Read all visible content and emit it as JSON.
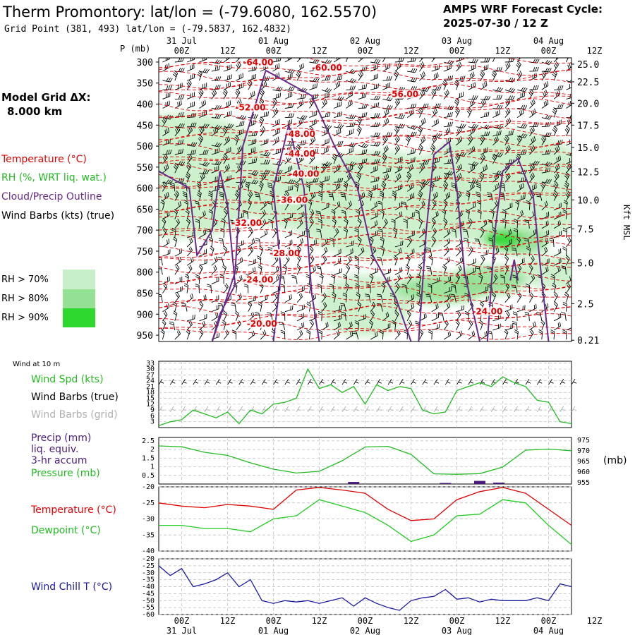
{
  "header": {
    "title": "Therm Promontory:  lat/lon = (-79.6080, 162.5570)",
    "grid_point": "Grid Point (381, 493) lat/lon = (-79.5837, 162.4832)",
    "forecast_title": "AMPS WRF Forecast Cycle:",
    "forecast_cycle": "2025-07-30 / 12  Z",
    "model_grid_label": "Model Grid ΔX:",
    "model_grid_value": "8.000 km"
  },
  "time_axis": {
    "ticks": [
      "00Z",
      "12Z",
      "00Z",
      "12Z",
      "00Z",
      "12Z",
      "00Z",
      "12Z",
      "00Z",
      "12Z"
    ],
    "dates": [
      {
        "label": "31 Jul",
        "tick_index": 0
      },
      {
        "label": "01 Aug",
        "tick_index": 2
      },
      {
        "label": "02 Aug",
        "tick_index": 4
      },
      {
        "label": "03 Aug",
        "tick_index": 6
      },
      {
        "label": "04 Aug",
        "tick_index": 8
      }
    ],
    "hour_range": [
      -6,
      102
    ]
  },
  "colors": {
    "temperature": "#e00000",
    "rh": "#22bb22",
    "cloud": "#6a2a8a",
    "wind_barbs": "#000000",
    "wind_barbs_grid": "#b0b0b0",
    "dewpoint": "#22cc22",
    "wind_chill": "#1a1aa0",
    "precip": "#4a1a7a",
    "rh70": "#c8f0c8",
    "rh80": "#94e094",
    "rh90": "#2ed82e"
  },
  "legend_main": {
    "temperature": "Temperature (°C)",
    "rh": "RH (%, WRT liq. wat.)",
    "cloud": "Cloud/Precip Outline",
    "wind": "Wind Barbs (kts) (true)",
    "rh_levels": [
      "RH > 70%",
      "RH > 80%",
      "RH > 90%"
    ]
  },
  "panels": {
    "wind": {
      "title": "Wind at 10 m",
      "legend": [
        "Wind Spd (kts)",
        "Wind Barbs (true)",
        "Wind Barbs (grid)"
      ]
    },
    "precip": {
      "legend": [
        "Precip (mm)",
        "liq. equiv.",
        "3-hr accum",
        "Pressure (mb)"
      ],
      "right_unit": "(mb)"
    },
    "temp": {
      "legend": [
        "Temperature (°C)",
        "Dewpoint (°C)"
      ]
    },
    "chill": {
      "legend": [
        "Wind Chill T (°C)"
      ]
    }
  },
  "chart_data": [
    {
      "type": "heatmap",
      "name": "cross-section",
      "ylabel": "P (mb)",
      "y_ticks": [
        300,
        350,
        400,
        450,
        500,
        550,
        600,
        650,
        700,
        750,
        800,
        850,
        900,
        950
      ],
      "ylim": [
        290,
        965
      ],
      "right_axis_label": "Kft MSL",
      "right_ticks": [
        {
          "label": "25.0",
          "p": 305
        },
        {
          "label": "22.5",
          "p": 347
        },
        {
          "label": "20.0",
          "p": 398
        },
        {
          "label": "17.5",
          "p": 450
        },
        {
          "label": "15.0",
          "p": 503
        },
        {
          "label": "12.5",
          "p": 561
        },
        {
          "label": "10.0",
          "p": 628
        },
        {
          "label": "7.5",
          "p": 697
        },
        {
          "label": "5.0",
          "p": 778
        },
        {
          "label": "2.5",
          "p": 875
        },
        {
          "label": "0.21",
          "p": 962
        }
      ],
      "temperature_labels": [
        {
          "text": "-64.00",
          "h": 20,
          "p": 308
        },
        {
          "text": "-60.00",
          "h": 38,
          "p": 320
        },
        {
          "text": "-56.00",
          "h": 58,
          "p": 383
        },
        {
          "text": "-52.00",
          "h": 18,
          "p": 415
        },
        {
          "text": "-48.00",
          "h": 31,
          "p": 478
        },
        {
          "text": "-44.00",
          "h": 31,
          "p": 525
        },
        {
          "text": "-40.00",
          "h": 32,
          "p": 573
        },
        {
          "text": "-36.00",
          "h": 29,
          "p": 635
        },
        {
          "text": "-32.00",
          "h": 17,
          "p": 690
        },
        {
          "text": "-28.00",
          "h": 27,
          "p": 762
        },
        {
          "text": "-24.00",
          "h": 20,
          "p": 825
        },
        {
          "text": "-20.00",
          "h": 21,
          "p": 930
        },
        {
          "text": "-24.00",
          "h": 80,
          "p": 900
        }
      ]
    },
    {
      "type": "line",
      "name": "wind-speed",
      "y_ticks": [
        3,
        6,
        9,
        12,
        15,
        18,
        21,
        24,
        27,
        30,
        33
      ],
      "ylim": [
        0,
        34
      ],
      "x": [
        -6,
        -3,
        0,
        3,
        6,
        9,
        12,
        15,
        18,
        21,
        24,
        27,
        30,
        33,
        36,
        39,
        42,
        45,
        48,
        51,
        54,
        57,
        60,
        63,
        66,
        69,
        72,
        75,
        78,
        81,
        84,
        87,
        90,
        93,
        96,
        99,
        102
      ],
      "series": [
        {
          "values": [
            1,
            3,
            4,
            9,
            7,
            5,
            8,
            2,
            9,
            7,
            12,
            13,
            15,
            30,
            20,
            22,
            18,
            21,
            12,
            22,
            19,
            21,
            20,
            9,
            7,
            8,
            19,
            21,
            23,
            21,
            26,
            23,
            21,
            14,
            13,
            3,
            2
          ]
        }
      ]
    },
    {
      "type": "line",
      "name": "precip-pressure",
      "y_ticks_left": [
        0.5,
        1.0,
        1.5,
        2.0,
        2.5
      ],
      "ylim_left": [
        0,
        2.7
      ],
      "y_ticks_right": [
        955,
        960,
        965,
        970,
        975
      ],
      "ylim_right": [
        954,
        976
      ],
      "pressure_x": [
        -6,
        0,
        6,
        12,
        18,
        24,
        30,
        36,
        42,
        48,
        54,
        60,
        66,
        72,
        78,
        84,
        90,
        96,
        102
      ],
      "pressure": [
        972,
        971.6,
        969,
        967.5,
        964,
        961,
        959.2,
        960,
        965,
        971.5,
        971.8,
        968,
        958.8,
        958.6,
        958.9,
        962,
        970,
        970.5,
        969.7
      ],
      "precip_bars": [
        {
          "h": 45,
          "v": 0.12
        },
        {
          "h": 69,
          "v": 0.06
        },
        {
          "h": 78,
          "v": 0.18
        },
        {
          "h": 83,
          "v": 0.08
        }
      ]
    },
    {
      "type": "line",
      "name": "temperature-dewpoint",
      "y_ticks": [
        -40,
        -35,
        -30,
        -25,
        -20
      ],
      "ylim": [
        -40,
        -20
      ],
      "x": [
        -6,
        0,
        6,
        12,
        18,
        24,
        30,
        36,
        42,
        48,
        54,
        60,
        66,
        72,
        78,
        84,
        90,
        96,
        102
      ],
      "series": [
        {
          "values": [
            -25,
            -26,
            -26.5,
            -25.5,
            -26,
            -27,
            -21,
            -20.2,
            -21,
            -22,
            -27,
            -30.5,
            -30,
            -24,
            -21.5,
            -20.2,
            -22,
            -27,
            -32
          ]
        },
        {
          "values": [
            -32,
            -32,
            -33,
            -33,
            -34,
            -30,
            -29,
            -24,
            -26,
            -28,
            -32,
            -37,
            -35,
            -29,
            -28.5,
            -24,
            -25,
            -32,
            -38
          ]
        }
      ]
    },
    {
      "type": "line",
      "name": "wind-chill",
      "y_ticks": [
        -60,
        -55,
        -50,
        -45,
        -40,
        -35,
        -30,
        -25,
        -20
      ],
      "ylim": [
        -60,
        -20
      ],
      "x": [
        -6,
        -3,
        0,
        3,
        6,
        9,
        12,
        15,
        18,
        21,
        24,
        27,
        30,
        33,
        36,
        39,
        42,
        45,
        48,
        51,
        54,
        57,
        60,
        63,
        66,
        69,
        72,
        75,
        78,
        81,
        84,
        87,
        90,
        93,
        96,
        99,
        102
      ],
      "series": [
        {
          "values": [
            -25,
            -32,
            -27,
            -40,
            -38,
            -35,
            -30,
            -40,
            -35,
            -50,
            -52,
            -50,
            -51,
            -50,
            -52,
            -50,
            -48,
            -54,
            -48,
            -52,
            -55,
            -57,
            -50,
            -48,
            -47,
            -42,
            -49,
            -48,
            -51,
            -49,
            -50,
            -50,
            -50,
            -48,
            -50,
            -38,
            -40
          ]
        }
      ]
    }
  ]
}
